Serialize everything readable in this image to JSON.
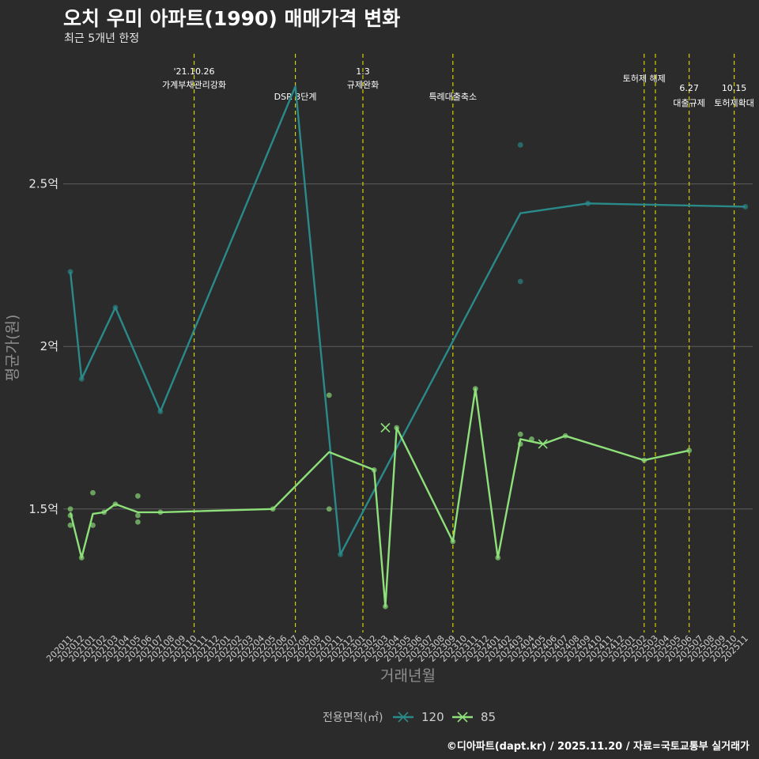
{
  "title": "오치 우미 아파트(1990) 매매가격 변화",
  "subtitle": "최근 5개년 한정",
  "caption": "©디아파트(dapt.kr) / 2025.11.20 / 자료=국토교통부 실거래가",
  "chart_data": {
    "type": "line",
    "xlabel": "거래년월",
    "ylabel": "평균가(원)",
    "ylim": [
      1.12,
      2.92
    ],
    "yticks": [
      {
        "value": 1.5,
        "label": "1.5억"
      },
      {
        "value": 2.0,
        "label": "2억"
      },
      {
        "value": 2.5,
        "label": "2.5억"
      }
    ],
    "x": [
      "202011",
      "202012",
      "202101",
      "202102",
      "202103",
      "202104",
      "202105",
      "202106",
      "202107",
      "202108",
      "202109",
      "202110",
      "202111",
      "202112",
      "202201",
      "202202",
      "202203",
      "202204",
      "202205",
      "202206",
      "202207",
      "202208",
      "202209",
      "202210",
      "202211",
      "202212",
      "202301",
      "202302",
      "202303",
      "202304",
      "202305",
      "202306",
      "202307",
      "202308",
      "202309",
      "202310",
      "202311",
      "202312",
      "202401",
      "202402",
      "202403",
      "202404",
      "202405",
      "202406",
      "202407",
      "202408",
      "202409",
      "202410",
      "202411",
      "202412",
      "202501",
      "202502",
      "202503",
      "202504",
      "202505",
      "202506",
      "202507",
      "202508",
      "202509",
      "202510",
      "202511"
    ],
    "legend": {
      "title": "전용면적(㎡)"
    },
    "series": [
      {
        "name": "120",
        "color": "#2a8a8a",
        "line": [
          {
            "x": "202011",
            "y": 2.23
          },
          {
            "x": "202012",
            "y": 1.9
          },
          {
            "x": "202103",
            "y": 2.12
          },
          {
            "x": "202107",
            "y": 1.8
          },
          {
            "x": "202207",
            "y": 2.8
          },
          {
            "x": "202211",
            "y": 1.36
          },
          {
            "x": "202403",
            "y": 2.41
          },
          {
            "x": "202409",
            "y": 2.44
          },
          {
            "x": "202511",
            "y": 2.43
          }
        ],
        "points": [
          {
            "x": "202011",
            "y": 2.23
          },
          {
            "x": "202012",
            "y": 1.9
          },
          {
            "x": "202103",
            "y": 2.12
          },
          {
            "x": "202107",
            "y": 1.8
          },
          {
            "x": "202211",
            "y": 1.36
          },
          {
            "x": "202403",
            "y": 2.62
          },
          {
            "x": "202403",
            "y": 2.2
          },
          {
            "x": "202409",
            "y": 2.44
          },
          {
            "x": "202511",
            "y": 2.43
          }
        ],
        "crosses": []
      },
      {
        "name": "85",
        "color": "#8ee07a",
        "line": [
          {
            "x": "202011",
            "y": 1.49
          },
          {
            "x": "202012",
            "y": 1.35
          },
          {
            "x": "202101",
            "y": 1.485
          },
          {
            "x": "202102",
            "y": 1.49
          },
          {
            "x": "202103",
            "y": 1.515
          },
          {
            "x": "202105",
            "y": 1.49
          },
          {
            "x": "202107",
            "y": 1.49
          },
          {
            "x": "202205",
            "y": 1.5
          },
          {
            "x": "202210",
            "y": 1.675
          },
          {
            "x": "202302",
            "y": 1.62
          },
          {
            "x": "202303",
            "y": 1.2
          },
          {
            "x": "202304",
            "y": 1.75
          },
          {
            "x": "202309",
            "y": 1.4
          },
          {
            "x": "202311",
            "y": 1.87
          },
          {
            "x": "202401",
            "y": 1.35
          },
          {
            "x": "202403",
            "y": 1.715
          },
          {
            "x": "202405",
            "y": 1.7
          },
          {
            "x": "202407",
            "y": 1.725
          },
          {
            "x": "202502",
            "y": 1.65
          },
          {
            "x": "202506",
            "y": 1.68
          }
        ],
        "points": [
          {
            "x": "202011",
            "y": 1.5
          },
          {
            "x": "202011",
            "y": 1.48
          },
          {
            "x": "202011",
            "y": 1.45
          },
          {
            "x": "202012",
            "y": 1.35
          },
          {
            "x": "202101",
            "y": 1.55
          },
          {
            "x": "202101",
            "y": 1.45
          },
          {
            "x": "202102",
            "y": 1.49
          },
          {
            "x": "202103",
            "y": 1.515
          },
          {
            "x": "202105",
            "y": 1.54
          },
          {
            "x": "202105",
            "y": 1.48
          },
          {
            "x": "202105",
            "y": 1.46
          },
          {
            "x": "202107",
            "y": 1.49
          },
          {
            "x": "202205",
            "y": 1.5
          },
          {
            "x": "202210",
            "y": 1.85
          },
          {
            "x": "202210",
            "y": 1.5
          },
          {
            "x": "202302",
            "y": 1.62
          },
          {
            "x": "202303",
            "y": 1.2
          },
          {
            "x": "202304",
            "y": 1.75
          },
          {
            "x": "202309",
            "y": 1.4
          },
          {
            "x": "202311",
            "y": 1.87
          },
          {
            "x": "202401",
            "y": 1.35
          },
          {
            "x": "202403",
            "y": 1.73
          },
          {
            "x": "202403",
            "y": 1.7
          },
          {
            "x": "202404",
            "y": 1.715
          },
          {
            "x": "202407",
            "y": 1.725
          },
          {
            "x": "202502",
            "y": 1.65
          },
          {
            "x": "202506",
            "y": 1.68
          }
        ],
        "crosses": [
          {
            "x": "202303",
            "y": 1.75
          },
          {
            "x": "202405",
            "y": 1.7
          }
        ]
      }
    ],
    "events": [
      {
        "x": "202110",
        "lines": [
          "'21.10.26",
          "가계부채관리강화"
        ],
        "level": "high"
      },
      {
        "x": "202207",
        "lines": [
          "DSR 3단계"
        ],
        "level": "low"
      },
      {
        "x": "202301",
        "lines": [
          "1.3",
          "규제완화"
        ],
        "level": "high"
      },
      {
        "x": "202309",
        "lines": [
          "특례대출축소"
        ],
        "level": "low"
      },
      {
        "x": "202502",
        "lines": [
          "토허제 해제"
        ],
        "level": "mid"
      },
      {
        "x": "202503",
        "lines": [],
        "level": "none"
      },
      {
        "x": "202506",
        "lines": [
          "6.27",
          "대출규제"
        ],
        "level": "low2"
      },
      {
        "x": "202510",
        "lines": [
          "10.15",
          "토허제확대"
        ],
        "level": "low2"
      }
    ]
  }
}
